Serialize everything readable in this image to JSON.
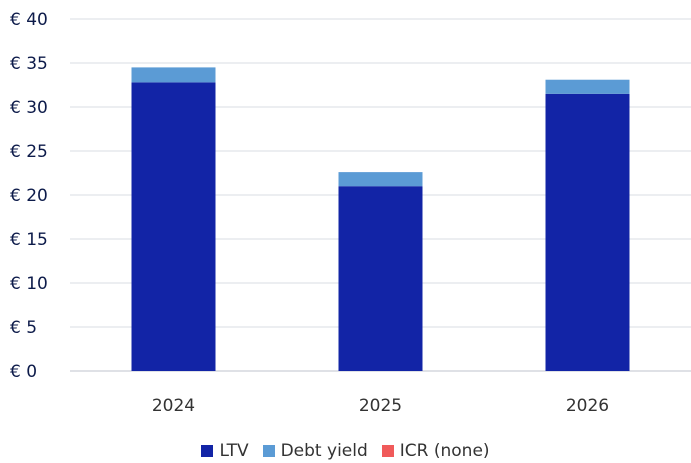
{
  "chart_data": {
    "type": "bar",
    "stacked": true,
    "categories": [
      "2024",
      "2025",
      "2026"
    ],
    "series": [
      {
        "name": "LTV",
        "values": [
          32.8,
          21.0,
          31.5
        ],
        "color": "#1224a6"
      },
      {
        "name": "Debt yield",
        "values": [
          1.7,
          1.6,
          1.6
        ],
        "color": "#5b9bd5"
      },
      {
        "name": "ICR (none)",
        "values": [
          0,
          0,
          0
        ],
        "color": "#f05a5a"
      }
    ],
    "y_ticks": [
      "€ 0",
      "€ 5",
      "€ 10",
      "€ 15",
      "€ 20",
      "€ 25",
      "€ 30",
      "€ 35",
      "€ 40"
    ],
    "ylim": [
      0,
      40
    ],
    "grid": true,
    "legend_position": "bottom",
    "title": "",
    "xlabel": "",
    "ylabel": ""
  }
}
